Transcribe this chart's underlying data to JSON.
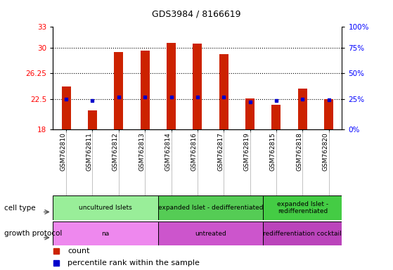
{
  "title": "GDS3984 / 8166619",
  "samples": [
    "GSM762810",
    "GSM762811",
    "GSM762812",
    "GSM762813",
    "GSM762814",
    "GSM762816",
    "GSM762817",
    "GSM762819",
    "GSM762815",
    "GSM762818",
    "GSM762820"
  ],
  "count_values": [
    24.3,
    20.8,
    29.3,
    29.5,
    30.7,
    30.6,
    29.0,
    22.6,
    21.6,
    24.0,
    22.5
  ],
  "percentile_values": [
    22.5,
    22.2,
    22.8,
    22.8,
    22.8,
    22.8,
    22.8,
    22.0,
    22.2,
    22.5,
    22.3
  ],
  "ylim": [
    18,
    33
  ],
  "yticks_left": [
    18,
    22.5,
    26.25,
    30,
    33
  ],
  "yticks_right_vals": [
    0,
    25,
    50,
    75,
    100
  ],
  "yticks_right_pos": [
    18,
    22.5,
    26.25,
    30,
    33
  ],
  "bar_color": "#cc2200",
  "dot_color": "#0000cc",
  "cell_type_groups": [
    {
      "label": "uncultured Islets",
      "start": 0,
      "end": 4,
      "color": "#99ee99"
    },
    {
      "label": "expanded Islet - dedifferentiated",
      "start": 4,
      "end": 8,
      "color": "#55cc55"
    },
    {
      "label": "expanded Islet -\nredifferentiated",
      "start": 8,
      "end": 11,
      "color": "#44cc44"
    }
  ],
  "growth_protocol_groups": [
    {
      "label": "na",
      "start": 0,
      "end": 4,
      "color": "#ee88ee"
    },
    {
      "label": "untreated",
      "start": 4,
      "end": 8,
      "color": "#cc55cc"
    },
    {
      "label": "redifferentiation cocktail",
      "start": 8,
      "end": 11,
      "color": "#bb44bb"
    }
  ],
  "legend_items": [
    {
      "color": "#cc2200",
      "label": "count"
    },
    {
      "color": "#0000cc",
      "label": "percentile rank within the sample"
    }
  ],
  "base": 18,
  "bar_width": 0.35
}
